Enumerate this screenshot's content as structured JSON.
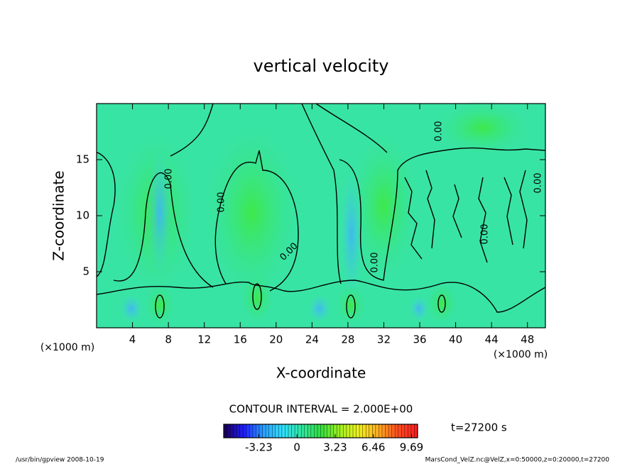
{
  "chart_data": {
    "type": "contour",
    "title": "vertical velocity",
    "x_label": "X-coordinate",
    "y_label": "Z-coordinate",
    "x_unit": "(×1000 m)",
    "y_unit": "(×1000 m)",
    "xlim": [
      0,
      50
    ],
    "xticks": [
      4,
      8,
      12,
      16,
      20,
      24,
      28,
      32,
      36,
      40,
      44,
      48
    ],
    "ylim": [
      0,
      20
    ],
    "yticks": [
      5,
      10,
      15
    ],
    "contour_interval_label": "CONTOUR INTERVAL = 2.000E+00",
    "contour_labels": [
      "0.00",
      "0.00",
      "0.00",
      "0.00",
      "0.00",
      "0.00",
      "0.00"
    ],
    "time_label": "t=27200 s",
    "colorbar": {
      "clim": [
        -6.2,
        10.2
      ],
      "ticks": [
        -3.23,
        0,
        3.23,
        6.46,
        9.69
      ],
      "colormap": [
        "#1a0060",
        "#2020ff",
        "#2aa0ff",
        "#30e0ff",
        "#30e8a0",
        "#30e040",
        "#a0f020",
        "#f0f020",
        "#ffb020",
        "#ff5020",
        "#ff2020"
      ]
    },
    "footer_left": "/usr/bin/gpview  2008-10-19",
    "footer_right": "MarsCond_VelZ.nc@VelZ,x=0:50000,z=0:20000,t=27200"
  }
}
